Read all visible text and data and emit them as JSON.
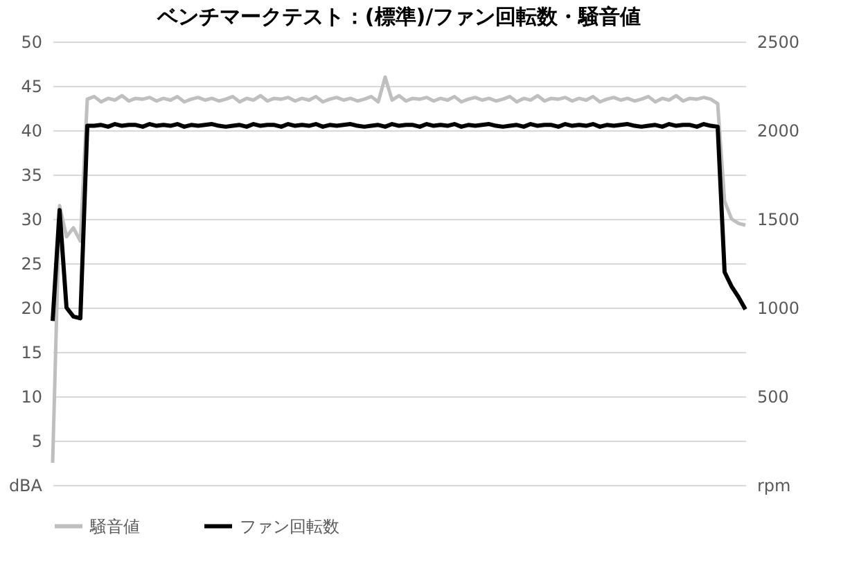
{
  "chart_data": {
    "type": "line",
    "title": "ベンチマークテスト：(標準)/ファン回転数・騒音値",
    "categories": [
      null,
      null,
      null,
      null,
      null,
      null,
      null,
      null,
      null,
      null,
      null,
      null,
      null,
      null,
      null,
      null,
      null,
      null,
      null,
      null,
      null,
      null,
      null,
      null,
      null,
      null,
      null,
      null,
      null,
      null,
      null,
      null,
      null,
      null,
      null,
      null,
      null,
      null,
      null,
      null,
      null,
      null,
      null,
      null,
      null,
      null,
      null,
      null,
      null,
      null,
      null,
      null,
      null,
      null,
      null,
      null,
      null,
      null,
      null,
      null,
      null,
      null,
      null,
      null,
      null,
      null,
      null,
      null,
      null,
      null,
      null,
      null,
      null,
      null,
      null,
      null,
      null,
      null,
      null,
      null,
      null,
      null,
      null,
      null,
      null,
      null,
      null,
      null,
      null,
      null,
      null,
      null,
      null,
      null,
      null,
      null,
      null,
      null,
      null,
      null,
      null
    ],
    "series": [
      {
        "name": "騒音値",
        "color": "#bfbfbf",
        "axis": "y",
        "values": [
          2.5,
          31.5,
          28,
          29,
          27.5,
          43.5,
          43.8,
          43.2,
          43.6,
          43.4,
          43.9,
          43.3,
          43.6,
          43.5,
          43.7,
          43.3,
          43.6,
          43.4,
          43.8,
          43.2,
          43.5,
          43.7,
          43.4,
          43.6,
          43.3,
          43.5,
          43.8,
          43.2,
          43.6,
          43.4,
          43.9,
          43.3,
          43.6,
          43.5,
          43.7,
          43.3,
          43.6,
          43.4,
          43.8,
          43.2,
          43.5,
          43.7,
          43.4,
          43.6,
          43.3,
          43.5,
          43.8,
          43.2,
          46,
          43.4,
          43.9,
          43.3,
          43.6,
          43.5,
          43.7,
          43.3,
          43.6,
          43.4,
          43.8,
          43.2,
          43.5,
          43.7,
          43.4,
          43.6,
          43.3,
          43.5,
          43.8,
          43.2,
          43.6,
          43.4,
          43.9,
          43.3,
          43.6,
          43.5,
          43.7,
          43.3,
          43.6,
          43.4,
          43.8,
          43.2,
          43.5,
          43.7,
          43.4,
          43.6,
          43.3,
          43.5,
          43.8,
          43.2,
          43.6,
          43.4,
          43.9,
          43.3,
          43.6,
          43.5,
          43.7,
          43.5,
          43,
          32,
          30,
          29.5,
          29.3
        ]
      },
      {
        "name": "ファン回転数",
        "color": "#000000",
        "axis": "y2",
        "values": [
          925,
          1550,
          1000,
          950,
          940,
          2025,
          2025,
          2030,
          2020,
          2035,
          2025,
          2030,
          2030,
          2020,
          2035,
          2025,
          2030,
          2025,
          2035,
          2020,
          2030,
          2025,
          2030,
          2035,
          2025,
          2020,
          2025,
          2030,
          2020,
          2035,
          2025,
          2030,
          2030,
          2020,
          2035,
          2025,
          2030,
          2025,
          2035,
          2020,
          2030,
          2025,
          2030,
          2035,
          2025,
          2020,
          2025,
          2030,
          2020,
          2035,
          2025,
          2030,
          2030,
          2020,
          2035,
          2025,
          2030,
          2025,
          2035,
          2020,
          2030,
          2025,
          2030,
          2035,
          2025,
          2020,
          2025,
          2030,
          2020,
          2035,
          2025,
          2030,
          2030,
          2020,
          2035,
          2025,
          2030,
          2025,
          2035,
          2020,
          2030,
          2025,
          2030,
          2035,
          2025,
          2020,
          2025,
          2030,
          2020,
          2035,
          2025,
          2030,
          2030,
          2020,
          2035,
          2025,
          2020,
          1200,
          1120,
          1060,
          990
        ]
      }
    ],
    "ylim": [
      0,
      50
    ],
    "yticks": [
      {
        "value": 0,
        "label": "dBA"
      },
      5,
      10,
      15,
      20,
      25,
      30,
      35,
      40,
      45,
      50
    ],
    "y2lim": [
      0,
      2500
    ],
    "y2ticks": [
      {
        "value": 0,
        "label": "rpm"
      },
      500,
      1000,
      1500,
      2000,
      2500
    ],
    "grid": "y",
    "legend": "bottom",
    "marker": "none",
    "line_style": "solid"
  }
}
